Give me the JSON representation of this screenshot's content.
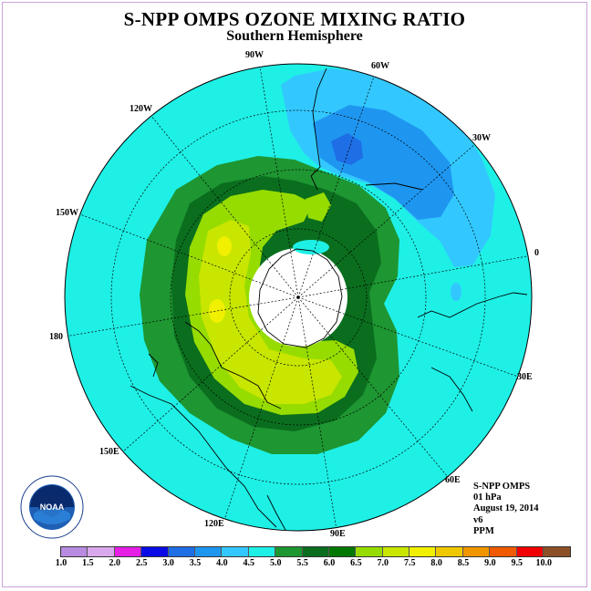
{
  "title": "S-NPP OMPS OZONE MIXING RATIO",
  "subtitle": "Southern Hemisphere",
  "longitude_labels": [
    {
      "name": "lon-90w",
      "text": "90W"
    },
    {
      "name": "lon-60w",
      "text": "60W"
    },
    {
      "name": "lon-120w",
      "text": "120W"
    },
    {
      "name": "lon-30w",
      "text": "30W"
    },
    {
      "name": "lon-150w",
      "text": "150W"
    },
    {
      "name": "lon-0",
      "text": "0"
    },
    {
      "name": "lon-180",
      "text": "180"
    },
    {
      "name": "lon-30e",
      "text": "30E"
    },
    {
      "name": "lon-150e",
      "text": "150E"
    },
    {
      "name": "lon-60e",
      "text": "60E"
    },
    {
      "name": "lon-120e",
      "text": "120E"
    },
    {
      "name": "lon-90e",
      "text": "90E"
    }
  ],
  "info": {
    "instrument": "S-NPP OMPS",
    "pressure": "01 hPa",
    "date": "August 19, 2014",
    "version": "v6",
    "units": "PPM"
  },
  "logo": {
    "text": "NOAA"
  },
  "colorbar": {
    "ticks": [
      "1.0",
      "1.5",
      "2.0",
      "2.5",
      "3.0",
      "3.5",
      "4.0",
      "4.5",
      "5.0",
      "5.5",
      "6.0",
      "6.5",
      "7.0",
      "7.5",
      "8.0",
      "8.5",
      "9.0",
      "9.5",
      "10.0"
    ],
    "colors": [
      "#b88be0",
      "#d9a8ec",
      "#e61ee6",
      "#0a0ae6",
      "#1e6ee6",
      "#1e96f0",
      "#32c8ff",
      "#1ef0e6",
      "#1e9632",
      "#0a6e1e",
      "#007800",
      "#96dc00",
      "#c8e600",
      "#f0f000",
      "#f0c800",
      "#f09600",
      "#f05a00",
      "#f00000",
      "#8c5028"
    ]
  },
  "color_legend_meaning": {
    "background_ppm_range": "4.5-5.0",
    "max_region": "7.0-7.5"
  }
}
